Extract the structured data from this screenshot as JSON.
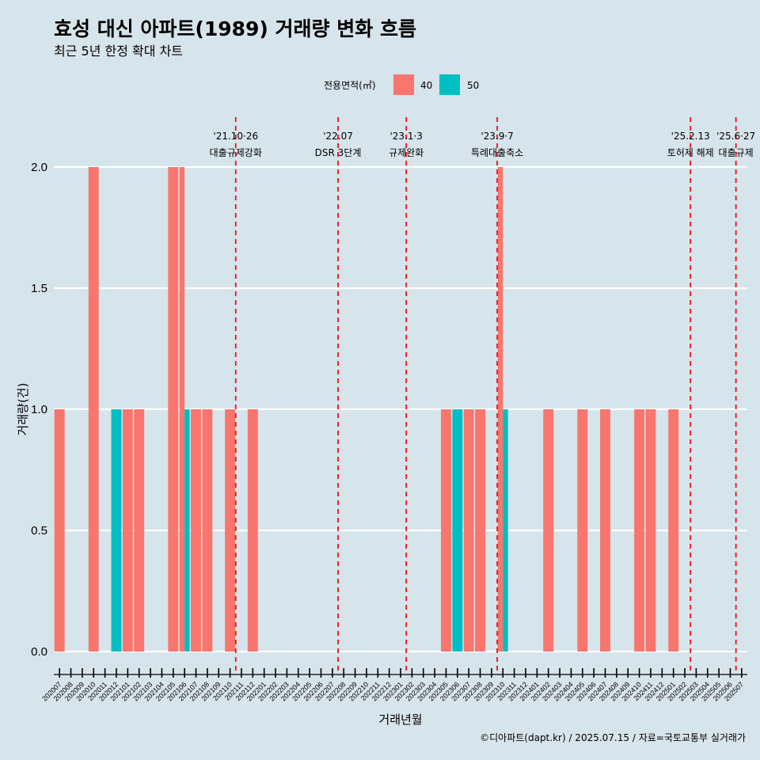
{
  "title": "효성 대신 아파트(1989) 거래량 변화 흐름",
  "subtitle": "최근 5년 한정 확대 차트",
  "caption": "©디아파트(dapt.kr) / 2025.07.15 / 자료=국토교통부 실거래가",
  "chart_data": {
    "type": "bar",
    "xlabel": "거래년월",
    "ylabel": "거래량(건)",
    "ylim": [
      0,
      2
    ],
    "yticks": [
      "0.0",
      "0.5",
      "1.0",
      "1.5",
      "2.0"
    ],
    "grid": true,
    "legend": {
      "title": "전용면적(㎡)",
      "placement": "top"
    },
    "categories": [
      "202007",
      "202008",
      "202009",
      "202010",
      "202011",
      "202012",
      "202101",
      "202102",
      "202103",
      "202104",
      "202105",
      "202106",
      "202107",
      "202108",
      "202109",
      "202110",
      "202111",
      "202112",
      "202201",
      "202202",
      "202203",
      "202204",
      "202205",
      "202206",
      "202207",
      "202208",
      "202209",
      "202210",
      "202211",
      "202212",
      "202301",
      "202302",
      "202303",
      "202304",
      "202305",
      "202306",
      "202307",
      "202308",
      "202309",
      "202310",
      "202311",
      "202312",
      "202401",
      "202402",
      "202403",
      "202404",
      "202405",
      "202406",
      "202407",
      "202408",
      "202409",
      "202410",
      "202411",
      "202412",
      "202501",
      "202502",
      "202503",
      "202504",
      "202505",
      "202506",
      "202507"
    ],
    "series": [
      {
        "name": "40",
        "color": "#f8766d",
        "values": [
          1,
          0,
          0,
          2,
          0,
          0,
          1,
          1,
          0,
          0,
          2,
          2,
          1,
          1,
          0,
          1,
          0,
          1,
          0,
          0,
          0,
          0,
          0,
          0,
          0,
          0,
          0,
          0,
          0,
          0,
          0,
          0,
          0,
          0,
          1,
          0,
          1,
          1,
          0,
          2,
          0,
          0,
          0,
          1,
          0,
          0,
          1,
          0,
          1,
          0,
          0,
          1,
          1,
          0,
          1,
          0,
          0,
          0,
          0,
          0,
          0
        ]
      },
      {
        "name": "50",
        "color": "#00bfc4",
        "values": [
          0,
          0,
          0,
          0,
          0,
          1,
          0,
          0,
          0,
          0,
          0,
          1,
          0,
          0,
          0,
          0,
          0,
          0,
          0,
          0,
          0,
          0,
          0,
          0,
          0,
          0,
          0,
          0,
          0,
          0,
          0,
          0,
          0,
          0,
          0,
          1,
          0,
          0,
          0,
          1,
          0,
          0,
          0,
          0,
          0,
          0,
          0,
          0,
          0,
          0,
          0,
          0,
          0,
          0,
          0,
          0,
          0,
          0,
          0,
          0,
          0
        ]
      }
    ],
    "annotations": [
      {
        "x": 15.5,
        "date": "'21.10·26",
        "label": "대출규제강화"
      },
      {
        "x": 24.5,
        "date": "'22.07",
        "label": "DSR 3단계"
      },
      {
        "x": 30.5,
        "date": "'23.1·3",
        "label": "규제완화"
      },
      {
        "x": 38.5,
        "date": "'23.9·7",
        "label": "특례대출축소"
      },
      {
        "x": 55.5,
        "date": "'25.2.13",
        "label": "토허제 해제"
      },
      {
        "x": 59.5,
        "date": "'25.6·27",
        "label": "대출규제"
      }
    ]
  }
}
